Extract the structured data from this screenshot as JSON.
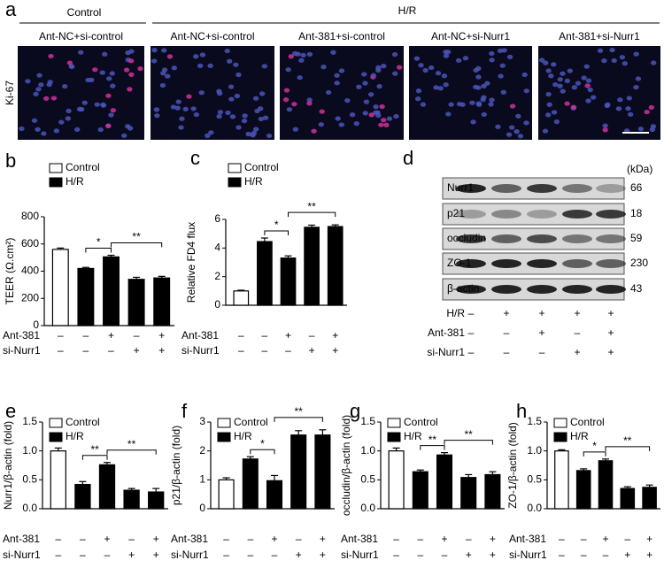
{
  "panel_a": {
    "label": "a",
    "group_labels": [
      "Control",
      "H/R"
    ],
    "image_titles": [
      "Ant-NC+si-control",
      "Ant-NC+si-control",
      "Ant-381+si-control",
      "Ant-NC+si-Nurr1",
      "Ant-381+si-Nurr1"
    ],
    "row_label": "Ki-67"
  },
  "panel_d": {
    "label": "d",
    "unit": "(kDa)",
    "proteins": [
      "Nurr1",
      "p21",
      "occludin",
      "ZO-1",
      "β-actin"
    ],
    "weights": [
      "66",
      "18",
      "59",
      "230",
      "43"
    ],
    "rows": [
      {
        "name": "H/R",
        "signs": [
          "–",
          "+",
          "+",
          "+",
          "+"
        ]
      },
      {
        "name": "Ant-381",
        "signs": [
          "–",
          "–",
          "+",
          "–",
          "+"
        ]
      },
      {
        "name": "si-Nurr1",
        "signs": [
          "–",
          "–",
          "–",
          "+",
          "+"
        ]
      }
    ]
  },
  "chart_data": [
    {
      "type": "bar",
      "panel": "b",
      "ylabel": "TEER (Ω.cm²)",
      "ylim": [
        0,
        800
      ],
      "yticks": [
        0,
        200,
        400,
        600,
        800
      ],
      "series": [
        {
          "name": "Control",
          "color": "#ffffff",
          "values": [
            560,
            null,
            null,
            null,
            null
          ],
          "errors": [
            10,
            null,
            null,
            null,
            null
          ]
        },
        {
          "name": "H/R",
          "color": "#000000",
          "values": [
            null,
            420,
            505,
            340,
            350
          ],
          "errors": [
            null,
            8,
            12,
            15,
            12
          ]
        }
      ],
      "treatments": [
        {
          "name": "Ant-381",
          "signs": [
            "–",
            "–",
            "+",
            "–",
            "+"
          ]
        },
        {
          "name": "si-Nurr1",
          "signs": [
            "–",
            "–",
            "–",
            "+",
            "+"
          ]
        }
      ],
      "annotations": [
        "*",
        "**"
      ]
    },
    {
      "type": "bar",
      "panel": "c",
      "ylabel": "Relative FD4 flux",
      "ylim": [
        0,
        6
      ],
      "yticks": [
        0,
        2,
        4,
        6
      ],
      "series": [
        {
          "name": "Control",
          "color": "#ffffff",
          "values": [
            1.0,
            null,
            null,
            null,
            null
          ],
          "errors": [
            0.05,
            null,
            null,
            null,
            null
          ]
        },
        {
          "name": "H/R",
          "color": "#000000",
          "values": [
            null,
            4.45,
            3.3,
            5.45,
            5.5
          ],
          "errors": [
            null,
            0.25,
            0.15,
            0.15,
            0.12
          ]
        }
      ],
      "treatments": [
        {
          "name": "Ant-381",
          "signs": [
            "–",
            "–",
            "+",
            "–",
            "+"
          ]
        },
        {
          "name": "si-Nurr1",
          "signs": [
            "–",
            "–",
            "–",
            "+",
            "+"
          ]
        }
      ],
      "annotations": [
        "*",
        "**"
      ]
    },
    {
      "type": "bar",
      "panel": "e",
      "ylabel": "Nurr1/β-actin (fold)",
      "ylim": [
        0,
        1.5
      ],
      "yticks": [
        {
          "value": 0,
          "label": "0.0"
        },
        0.5,
        {
          "value": 1,
          "label": "1.0"
        },
        1.5
      ],
      "series": [
        {
          "name": "Control",
          "color": "#ffffff",
          "values": [
            1.0,
            null,
            null,
            null,
            null
          ],
          "errors": [
            0.05,
            null,
            null,
            null,
            null
          ]
        },
        {
          "name": "H/R",
          "color": "#000000",
          "values": [
            null,
            0.42,
            0.76,
            0.32,
            0.29
          ],
          "errors": [
            null,
            0.05,
            0.04,
            0.03,
            0.06
          ]
        }
      ],
      "treatments": [
        {
          "name": "Ant-381",
          "signs": [
            "–",
            "–",
            "+",
            "–",
            "+"
          ]
        },
        {
          "name": "si-Nurr1",
          "signs": [
            "–",
            "–",
            "–",
            "+",
            "+"
          ]
        }
      ],
      "annotations": [
        "**",
        "**"
      ]
    },
    {
      "type": "bar",
      "panel": "f",
      "ylabel": "p21/β-actin (fold)",
      "ylim": [
        0,
        3
      ],
      "yticks": [
        0,
        1,
        2,
        3
      ],
      "series": [
        {
          "name": "Control",
          "color": "#ffffff",
          "values": [
            1.0,
            null,
            null,
            null,
            null
          ],
          "errors": [
            0.07,
            null,
            null,
            null,
            null
          ]
        },
        {
          "name": "H/R",
          "color": "#000000",
          "values": [
            null,
            1.72,
            0.97,
            2.55,
            2.55
          ],
          "errors": [
            null,
            0.08,
            0.18,
            0.15,
            0.18
          ]
        }
      ],
      "treatments": [
        {
          "name": "Ant-381",
          "signs": [
            "–",
            "–",
            "+",
            "–",
            "+"
          ]
        },
        {
          "name": "si-Nurr1",
          "signs": [
            "–",
            "–",
            "–",
            "+",
            "+"
          ]
        }
      ],
      "annotations": [
        "*",
        "**"
      ]
    },
    {
      "type": "bar",
      "panel": "g",
      "ylabel": "occludin/β-actin (fold)",
      "ylim": [
        0,
        1.5
      ],
      "yticks": [
        {
          "value": 0,
          "label": "0.0"
        },
        0.5,
        {
          "value": 1,
          "label": "1.0"
        },
        1.5
      ],
      "series": [
        {
          "name": "Control",
          "color": "#ffffff",
          "values": [
            1.0,
            null,
            null,
            null,
            null
          ],
          "errors": [
            0.05,
            null,
            null,
            null,
            null
          ]
        },
        {
          "name": "H/R",
          "color": "#000000",
          "values": [
            null,
            0.64,
            0.93,
            0.54,
            0.59
          ],
          "errors": [
            null,
            0.03,
            0.04,
            0.05,
            0.05
          ]
        }
      ],
      "treatments": [
        {
          "name": "Ant-381",
          "signs": [
            "–",
            "–",
            "+",
            "–",
            "+"
          ]
        },
        {
          "name": "si-Nurr1",
          "signs": [
            "–",
            "–",
            "–",
            "+",
            "+"
          ]
        }
      ],
      "annotations": [
        "**",
        "**"
      ]
    },
    {
      "type": "bar",
      "panel": "h",
      "ylabel": "ZO-1/β-actin (fold)",
      "ylim": [
        0,
        1.5
      ],
      "yticks": [
        {
          "value": 0,
          "label": "0.0"
        },
        0.5,
        {
          "value": 1,
          "label": "1.0"
        },
        1.5
      ],
      "series": [
        {
          "name": "Control",
          "color": "#ffffff",
          "values": [
            1.0,
            null,
            null,
            null,
            null
          ],
          "errors": [
            0.02,
            null,
            null,
            null,
            null
          ]
        },
        {
          "name": "H/R",
          "color": "#000000",
          "values": [
            null,
            0.66,
            0.83,
            0.35,
            0.37
          ],
          "errors": [
            null,
            0.03,
            0.03,
            0.03,
            0.04
          ]
        }
      ],
      "treatments": [
        {
          "name": "Ant-381",
          "signs": [
            "–",
            "–",
            "+",
            "–",
            "+"
          ]
        },
        {
          "name": "si-Nurr1",
          "signs": [
            "–",
            "–",
            "–",
            "+",
            "+"
          ]
        }
      ],
      "annotations": [
        "*",
        "**"
      ]
    }
  ]
}
